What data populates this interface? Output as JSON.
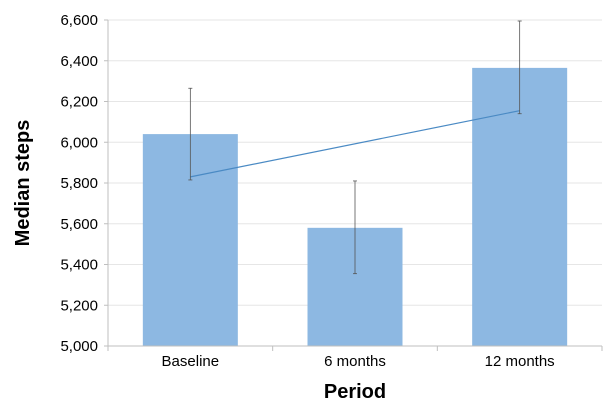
{
  "chart_data": {
    "type": "bar",
    "categories": [
      "Baseline",
      "6 months",
      "12 months"
    ],
    "values": [
      6040,
      5580,
      6365
    ],
    "error_bars": [
      {
        "low": 5815,
        "high": 6265
      },
      {
        "low": 5355,
        "high": 5810
      },
      {
        "low": 6140,
        "high": 6595
      }
    ],
    "trend_line": {
      "start": 5830,
      "end": 6155
    },
    "xlabel": "Period",
    "ylabel": "Median steps",
    "ylim": [
      5000,
      6600
    ],
    "yticks": [
      5000,
      5200,
      5400,
      5600,
      5800,
      6000,
      6200,
      6400,
      6600
    ],
    "ytick_labels": [
      "5,000",
      "5,200",
      "5,400",
      "5,600",
      "5,800",
      "6,000",
      "6,200",
      "6,400",
      "6,600"
    ],
    "grid": true,
    "legend": "none",
    "colors": {
      "bar": "#8db8e2",
      "trend": "#4a8ac4",
      "error": "#555555",
      "grid": "#e6e6e6",
      "axis": "#bfbfbf"
    }
  }
}
